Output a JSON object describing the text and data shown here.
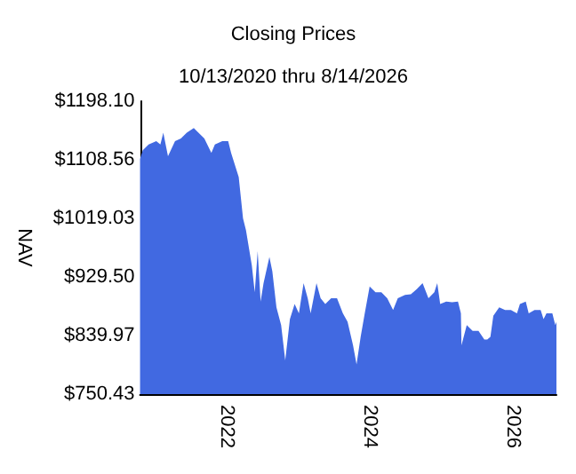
{
  "chart_data": {
    "type": "area",
    "title": "Closing Prices",
    "subtitle": "10/13/2020 thru 8/14/2026",
    "ylabel": "NAV",
    "x": [
      "2020-10-13",
      "2020-10-27",
      "2020-11-26",
      "2021-01-04",
      "2021-01-25",
      "2021-02-09",
      "2021-03-05",
      "2021-04-10",
      "2021-05-10",
      "2021-06-09",
      "2021-07-15",
      "2021-08-08",
      "2021-09-07",
      "2021-10-13",
      "2021-10-31",
      "2021-12-08",
      "2022-01-07",
      "2022-01-22",
      "2022-02-06",
      "2022-03-02",
      "2022-03-24",
      "2022-04-08",
      "2022-05-08",
      "2022-05-23",
      "2022-06-07",
      "2022-06-22",
      "2022-07-07",
      "2022-08-06",
      "2022-08-21",
      "2022-09-11",
      "2022-10-05",
      "2022-10-26",
      "2022-11-19",
      "2022-12-13",
      "2023-01-04",
      "2023-01-28",
      "2023-02-18",
      "2023-03-05",
      "2023-04-04",
      "2023-04-25",
      "2023-05-19",
      "2023-06-18",
      "2023-07-18",
      "2023-08-17",
      "2023-09-10",
      "2023-10-08",
      "2023-10-26",
      "2023-11-16",
      "2023-12-07",
      "2024-01-01",
      "2024-01-31",
      "2024-03-01",
      "2024-03-31",
      "2024-04-30",
      "2024-05-24",
      "2024-06-30",
      "2024-07-30",
      "2024-08-29",
      "2024-09-28",
      "2024-10-28",
      "2024-11-27",
      "2024-12-12",
      "2024-12-27",
      "2025-01-27",
      "2025-02-26",
      "2025-03-28",
      "2025-04-12",
      "2025-04-15",
      "2025-05-12",
      "2025-06-11",
      "2025-07-11",
      "2025-08-10",
      "2025-08-25",
      "2025-09-10",
      "2025-09-25",
      "2025-10-25",
      "2025-11-24",
      "2025-12-24",
      "2026-01-24",
      "2026-02-08",
      "2026-03-10",
      "2026-03-25",
      "2026-04-24",
      "2026-05-25",
      "2026-06-09",
      "2026-06-24",
      "2026-07-24",
      "2026-08-08",
      "2026-08-14"
    ],
    "series": [
      {
        "color": "#4169e1",
        "values": [
          1110,
          1123,
          1132,
          1137,
          1132,
          1150,
          1114,
          1137,
          1141,
          1150,
          1157,
          1150,
          1141,
          1119,
          1132,
          1137,
          1137,
          1119,
          1105,
          1082,
          1019,
          1001,
          947,
          906,
          969,
          892,
          920,
          960,
          938,
          883,
          856,
          802,
          865,
          888,
          874,
          920,
          897,
          874,
          920,
          897,
          888,
          897,
          897,
          874,
          861,
          825,
          796,
          838,
          874,
          915,
          906,
          906,
          897,
          879,
          897,
          902,
          903,
          911,
          920,
          897,
          906,
          920,
          888,
          892,
          891,
          892,
          874,
          825,
          856,
          847,
          847,
          834,
          834,
          838,
          870,
          883,
          879,
          879,
          874,
          888,
          892,
          874,
          879,
          879,
          865,
          874,
          874,
          856,
          861
        ]
      }
    ],
    "xlim": [
      "2020-10-13",
      "2026-08-14"
    ],
    "xticks": [
      {
        "value": "2022-01-01",
        "label": "2022"
      },
      {
        "value": "2024-01-01",
        "label": "2024"
      },
      {
        "value": "2026-01-01",
        "label": "2026"
      }
    ],
    "ylim": [
      750.43,
      1198.1
    ],
    "yticks": [
      {
        "value": 750.43,
        "label": "$750.43"
      },
      {
        "value": 839.97,
        "label": "$839.97"
      },
      {
        "value": 929.5,
        "label": "$929.50"
      },
      {
        "value": 1019.03,
        "label": "$1019.03"
      },
      {
        "value": 1108.56,
        "label": "$1108.56"
      },
      {
        "value": 1198.1,
        "label": "$1198.10"
      }
    ],
    "grid": false,
    "marker": "none"
  }
}
